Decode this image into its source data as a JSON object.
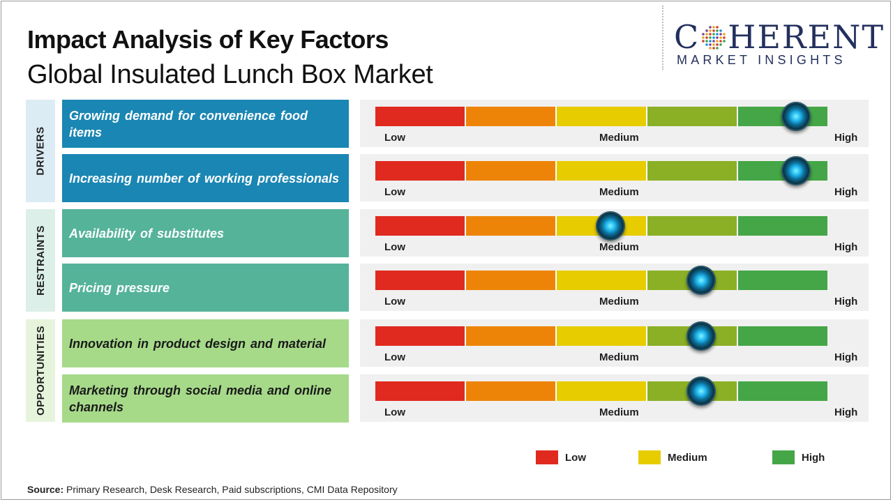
{
  "header": {
    "title": "Impact Analysis of Key Factors",
    "subtitle": "Global Insulated Lunch Box Market"
  },
  "logo": {
    "main_left": "C",
    "main_right": "HERENT",
    "sub": "MARKET INSIGHTS"
  },
  "colors": {
    "segments": [
      "#e02a1f",
      "#ee8407",
      "#e7cc00",
      "#8bb025",
      "#44a646"
    ],
    "drivers_factor_bg": "#1a86b3",
    "drivers_cat_bg": "#dcecf4",
    "restraints_factor_bg": "#55b39a",
    "restraints_cat_bg": "#dcefe9",
    "opportunities_factor_bg": "#a6da89",
    "opportunities_cat_bg": "#e6f4dc"
  },
  "chart_data": {
    "type": "table",
    "title": "Impact Analysis of Key Factors",
    "subtitle": "Global Insulated Lunch Box Market",
    "scale_labels": [
      "Low",
      "Medium",
      "High"
    ],
    "scale_segments": 5,
    "categories": [
      {
        "name": "DRIVERS",
        "factors": [
          {
            "label": "Growing demand for convenience food items",
            "impact_segment": 5,
            "position": 0.93
          },
          {
            "label": "Increasing number of working professionals",
            "impact_segment": 5,
            "position": 0.93
          }
        ]
      },
      {
        "name": "RESTRAINTS",
        "factors": [
          {
            "label": "Availability of substitutes",
            "impact_segment": 3,
            "position": 0.52
          },
          {
            "label": "Pricing pressure",
            "impact_segment": 4,
            "position": 0.72
          }
        ]
      },
      {
        "name": "OPPORTUNITIES",
        "factors": [
          {
            "label": "Innovation in product design and material",
            "impact_segment": 4,
            "position": 0.72
          },
          {
            "label": "Marketing through social media and online channels",
            "impact_segment": 4,
            "position": 0.72
          }
        ]
      }
    ],
    "legend": [
      {
        "label": "Low",
        "color": "#e02a1f"
      },
      {
        "label": "Medium",
        "color": "#e7cc00"
      },
      {
        "label": "High",
        "color": "#44a646"
      }
    ]
  },
  "source": {
    "prefix": "Source:",
    "text": "Primary Research, Desk Research, Paid subscriptions, CMI Data Repository"
  }
}
